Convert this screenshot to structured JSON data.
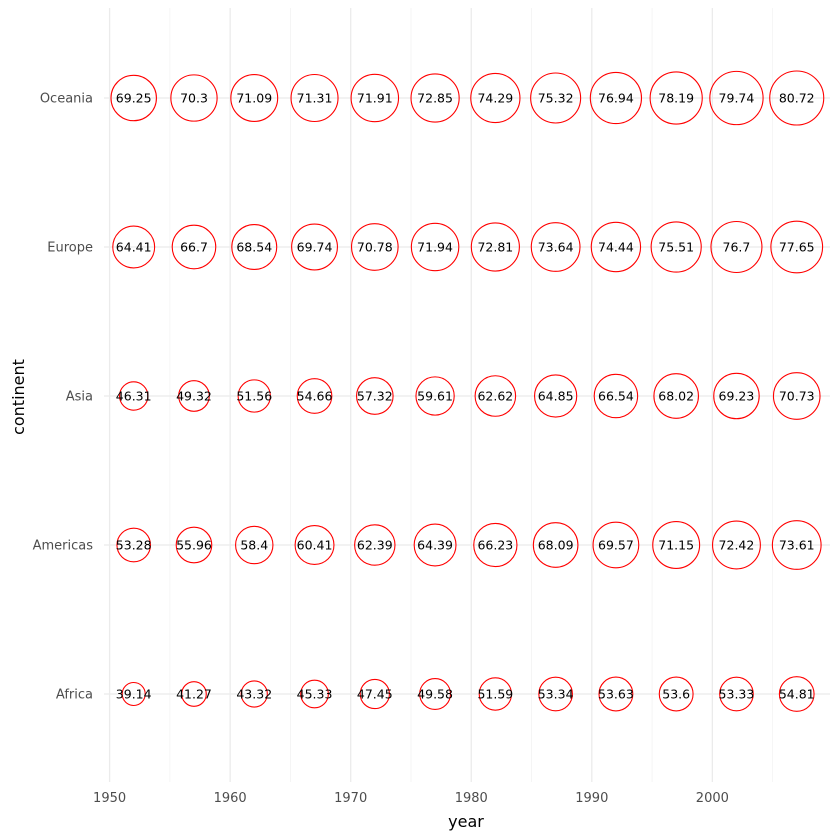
{
  "chart_data": {
    "type": "scatter",
    "xlabel": "year",
    "ylabel": "continent",
    "x_ticks": [
      1950,
      1960,
      1970,
      1980,
      1990,
      2000
    ],
    "xlim": [
      1950,
      2007
    ],
    "categories": [
      "Africa",
      "Americas",
      "Asia",
      "Europe",
      "Oceania"
    ],
    "years": [
      1952,
      1957,
      1962,
      1967,
      1972,
      1977,
      1982,
      1987,
      1992,
      1997,
      2002,
      2007
    ],
    "series": [
      {
        "category": "Africa",
        "labels": [
          "39.14",
          "41.27",
          "43.32",
          "45.33",
          "47.45",
          "49.58",
          "51.59",
          "53.34",
          "53.63",
          "53.6",
          "53.33",
          "54.81"
        ]
      },
      {
        "category": "Americas",
        "labels": [
          "53.28",
          "55.96",
          "58.4",
          "60.41",
          "62.39",
          "64.39",
          "66.23",
          "68.09",
          "69.57",
          "71.15",
          "72.42",
          "73.61"
        ]
      },
      {
        "category": "Asia",
        "labels": [
          "46.31",
          "49.32",
          "51.56",
          "54.66",
          "57.32",
          "59.61",
          "62.62",
          "64.85",
          "66.54",
          "68.02",
          "69.23",
          "70.73"
        ]
      },
      {
        "category": "Europe",
        "labels": [
          "64.41",
          "66.7",
          "68.54",
          "69.74",
          "70.78",
          "71.94",
          "72.81",
          "73.64",
          "74.44",
          "75.51",
          "76.7",
          "77.65"
        ]
      },
      {
        "category": "Oceania",
        "labels": [
          "69.25",
          "70.3",
          "71.09",
          "71.31",
          "71.91",
          "72.85",
          "74.29",
          "75.32",
          "76.94",
          "78.19",
          "79.74",
          "80.72"
        ]
      }
    ],
    "size_range": [
      39.14,
      80.72
    ],
    "marker": {
      "shape": "open-circle",
      "color": "#ff0000"
    },
    "grid": true,
    "legend": "none"
  }
}
